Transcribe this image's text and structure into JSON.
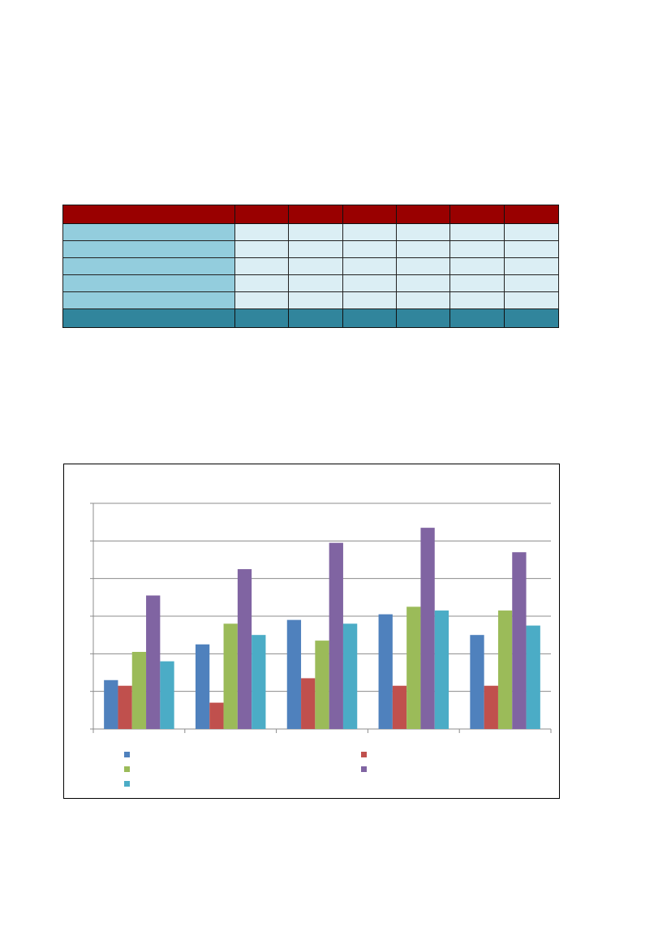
{
  "table": {
    "colors": {
      "header": "#990000",
      "label": "#93CDDD",
      "cell": "#DBEEF4",
      "total": "#31859C"
    },
    "header": [
      "",
      "",
      "",
      "",
      "",
      "",
      ""
    ],
    "rows": [
      [
        "",
        "",
        "",
        "",
        "",
        "",
        ""
      ],
      [
        "",
        "",
        "",
        "",
        "",
        "",
        ""
      ],
      [
        "",
        "",
        "",
        "",
        "",
        "",
        ""
      ],
      [
        "",
        "",
        "",
        "",
        "",
        "",
        ""
      ],
      [
        "",
        "",
        "",
        "",
        "",
        "",
        ""
      ]
    ],
    "total": [
      "",
      "",
      "",
      "",
      "",
      "",
      ""
    ]
  },
  "chart_data": {
    "type": "bar",
    "title": "",
    "xlabel": "",
    "ylabel": "",
    "ylim": [
      0,
      6
    ],
    "gridlines": true,
    "legend_position": "bottom",
    "categories": [
      "",
      "",
      "",
      "",
      ""
    ],
    "series": [
      {
        "color": "#4F81BD",
        "values": [
          1.3,
          2.25,
          2.9,
          3.05,
          2.5
        ]
      },
      {
        "color": "#C0504D",
        "values": [
          1.15,
          0.7,
          1.35,
          1.15,
          1.15
        ]
      },
      {
        "color": "#9BBB59",
        "values": [
          2.05,
          2.8,
          2.35,
          3.25,
          3.15
        ]
      },
      {
        "color": "#8064A2",
        "values": [
          3.55,
          4.25,
          4.95,
          5.35,
          4.7
        ]
      },
      {
        "color": "#4BACC6",
        "values": [
          1.8,
          2.5,
          2.8,
          3.15,
          2.75
        ]
      }
    ]
  }
}
